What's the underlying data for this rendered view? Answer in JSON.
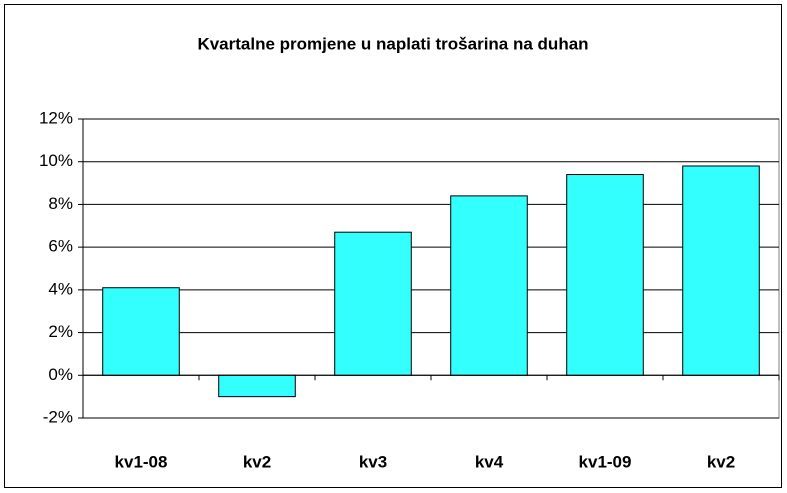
{
  "chart_data": {
    "type": "bar",
    "title": "Kvartalne promjene u naplati trošarina na duhan",
    "categories": [
      "kv1-08",
      "kv2",
      "kv3",
      "kv4",
      "kv1-09",
      "kv2"
    ],
    "values": [
      4.1,
      -1.0,
      6.7,
      8.4,
      9.4,
      9.8
    ],
    "color": "#33ffff",
    "ylim": [
      -2,
      12
    ],
    "yticks": [
      {
        "value": -2,
        "label": "-2%"
      },
      {
        "value": 0,
        "label": "0%"
      },
      {
        "value": 2,
        "label": "2%"
      },
      {
        "value": 4,
        "label": "4%"
      },
      {
        "value": 6,
        "label": "6%"
      },
      {
        "value": 8,
        "label": "8%"
      },
      {
        "value": 10,
        "label": "10%"
      },
      {
        "value": 12,
        "label": "12%"
      }
    ],
    "grid": true
  }
}
